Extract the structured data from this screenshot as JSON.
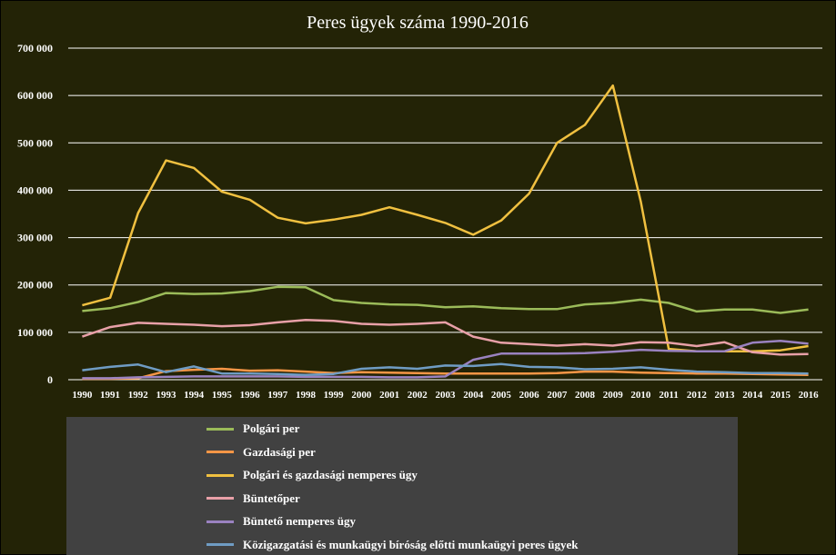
{
  "chart_data": {
    "type": "line",
    "title": "Peres ügyek száma 1990-2016",
    "xlabel": "",
    "ylabel": "",
    "ylim": [
      0,
      700000
    ],
    "yticks": [
      0,
      100000,
      200000,
      300000,
      400000,
      500000,
      600000,
      700000
    ],
    "ytick_labels": [
      "0",
      "100 000",
      "200 000",
      "300 000",
      "400 000",
      "500 000",
      "600 000",
      "700 000"
    ],
    "grid": true,
    "legend_position": "bottom",
    "categories": [
      "1990",
      "1991",
      "1992",
      "1993",
      "1994",
      "1995",
      "1996",
      "1997",
      "1998",
      "1999",
      "2000",
      "2001",
      "2002",
      "2003",
      "2004",
      "2005",
      "2006",
      "2007",
      "2008",
      "2009",
      "2010",
      "2011",
      "2012",
      "2013",
      "2014",
      "2015",
      "2016"
    ],
    "series": [
      {
        "name": "Polgári per",
        "color": "#9bbb59",
        "values": [
          145000,
          151000,
          164000,
          183000,
          181000,
          182000,
          187000,
          196000,
          195000,
          168000,
          162000,
          159000,
          158000,
          153000,
          155000,
          151000,
          149000,
          149000,
          159000,
          162000,
          169000,
          162000,
          144000,
          148000,
          148000,
          141000,
          148000
        ]
      },
      {
        "name": "Gazdasági per",
        "color": "#f79646",
        "values": [
          2000,
          2000,
          3000,
          18000,
          21000,
          23000,
          19000,
          20000,
          17000,
          14000,
          16000,
          15000,
          14000,
          13000,
          13000,
          13000,
          13000,
          14000,
          17000,
          17000,
          15000,
          14000,
          13000,
          13000,
          12000,
          11000,
          10000
        ]
      },
      {
        "name": "Polgári és gazdasági nemperes ügy",
        "color": "#f0c040",
        "values": [
          157000,
          173000,
          352000,
          463000,
          447000,
          397000,
          380000,
          342000,
          330000,
          338000,
          348000,
          364000,
          348000,
          331000,
          306000,
          336000,
          393000,
          500000,
          538000,
          621000,
          376000,
          65000,
          60000,
          60000,
          60000,
          62000,
          71000
        ]
      },
      {
        "name": "Büntetőper",
        "color": "#e8a0a8",
        "values": [
          91000,
          111000,
          120000,
          118000,
          116000,
          113000,
          115000,
          121000,
          126000,
          124000,
          118000,
          116000,
          118000,
          121000,
          91000,
          78000,
          75000,
          72000,
          75000,
          72000,
          79000,
          78000,
          71000,
          79000,
          58000,
          53000,
          54000
        ]
      },
      {
        "name": "Büntető nemperes ügy",
        "color": "#9a82c0",
        "values": [
          3000,
          3000,
          5000,
          6000,
          7000,
          7000,
          7000,
          7000,
          6000,
          6000,
          6000,
          5000,
          5000,
          7000,
          42000,
          55000,
          55000,
          55000,
          56000,
          59000,
          63000,
          61000,
          60000,
          60000,
          78000,
          82000,
          76000
        ]
      },
      {
        "name": "Közigazgatási és munkaügyi bíróság előtti munkaügyi peres ügyek",
        "color": "#6f9cc4",
        "values": [
          20000,
          27000,
          32000,
          16000,
          28000,
          13000,
          13000,
          12000,
          10000,
          12000,
          23000,
          26000,
          23000,
          30000,
          29000,
          33000,
          27000,
          26000,
          22000,
          23000,
          26000,
          21000,
          17000,
          16000,
          14000,
          14000,
          13000
        ]
      }
    ]
  }
}
